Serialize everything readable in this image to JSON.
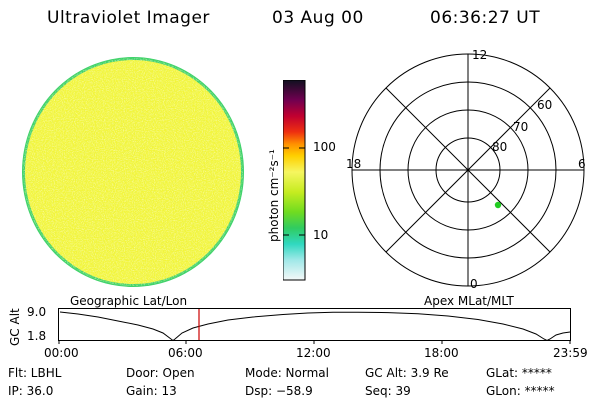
{
  "header": {
    "title": "Ultraviolet Imager",
    "date": "03 Aug 00",
    "time": "06:36:27 UT"
  },
  "colorbar": {
    "unit_label": "photon cm⁻²s⁻¹",
    "ticks": [
      "100",
      "10"
    ]
  },
  "polar_plot": {
    "mlt_labels": {
      "top": "12",
      "left": "18",
      "right": "6",
      "bottom": "0"
    },
    "lat_labels": [
      "60",
      "70",
      "80"
    ],
    "marker_color": "#22cc22"
  },
  "timeline": {
    "left_title": "Geographic Lat/Lon",
    "right_title": "Apex MLat/MLT",
    "axis_label": "GC Alt",
    "y_ticks": [
      "9.0",
      "1.8"
    ],
    "x_ticks": [
      "00:00",
      "06:00",
      "12:00",
      "18:00",
      "23:59"
    ],
    "current_marker_color": "#cc0000"
  },
  "info": {
    "filter": "Flt: LBHL",
    "ip": "IP: 36.0",
    "door": "Door: Open",
    "gain": "Gain: 13",
    "mode": "Mode: Normal",
    "dsp": "Dsp:  −58.9",
    "gc_alt": "GC Alt: 3.9 Re",
    "seq": "Seq: 39",
    "glat": "GLat: *****",
    "glon": "GLon: *****"
  }
}
